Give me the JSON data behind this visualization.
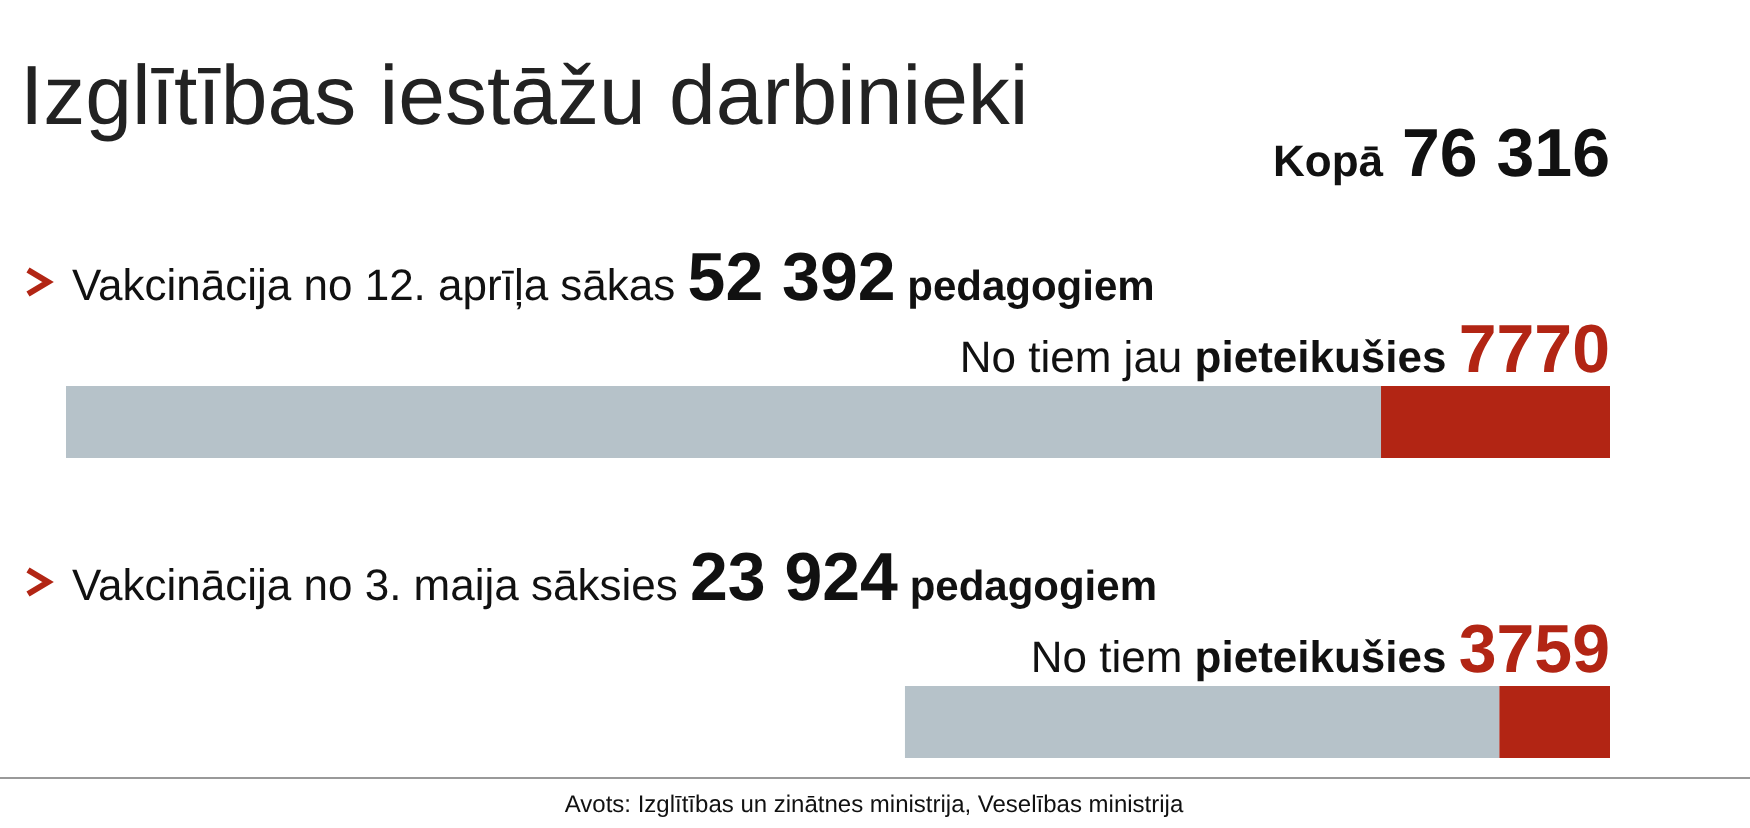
{
  "chart_data": {
    "type": "bar",
    "orientation": "horizontal",
    "stacked": true,
    "title": "Izglītības iestāžu darbinieki",
    "subtitle": "Kopā 76 316",
    "categories": [
      "Vakcinācija no 12. aprīļa sākas",
      "Vakcinācija no 3. maija sāksies"
    ],
    "series": [
      {
        "color": "#b22514",
        "values": [
          7770,
          3759
        ],
        "value_labels": [
          "7770",
          "3759"
        ]
      },
      {
        "color": "#b6c2c9",
        "values": [
          44622,
          20165
        ]
      }
    ],
    "totals": [
      "52 392",
      "23 924"
    ],
    "xlim": [
      52392,
      0
    ],
    "annotations": [
      "pedagogiem",
      "No tiem jau pieteikušies",
      "No tiem pieteikušies",
      "Avots: Izglītības un zinātnes ministrija, Veselības ministrija"
    ]
  }
}
